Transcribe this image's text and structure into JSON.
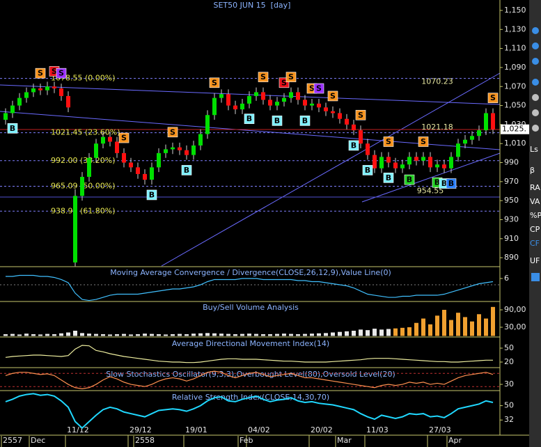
{
  "chart_data": [
    {
      "type": "candlestick",
      "title": "SET50 JUN 15  [day]",
      "open": [
        1035,
        1042,
        1050,
        1058,
        1064,
        1068,
        1066,
        1070,
        1068,
        1060,
        885,
        955,
        975,
        995,
        1010,
        1017,
        1012,
        1000,
        990,
        985,
        978,
        972,
        985,
        1000,
        1004,
        1006,
        1003,
        998,
        1008,
        1020,
        1040,
        1058,
        1062,
        1050,
        1046,
        1052,
        1060,
        1064,
        1056,
        1050,
        1054,
        1058,
        1064,
        1056,
        1050,
        1052,
        1048,
        1044,
        1042,
        1036,
        1030,
        1024,
        1010,
        998,
        984,
        996,
        990,
        984,
        988,
        996,
        992,
        996,
        985,
        988,
        984,
        996,
        1010,
        1014,
        1018,
        1024,
        1042
      ],
      "high": [
        1047,
        1055,
        1063,
        1069,
        1073,
        1073,
        1075,
        1075,
        1073,
        1065,
        962,
        980,
        1000,
        1015,
        1022,
        1022,
        1017,
        1005,
        995,
        990,
        983,
        990,
        1005,
        1009,
        1011,
        1011,
        1008,
        1013,
        1025,
        1045,
        1063,
        1067,
        1067,
        1055,
        1057,
        1065,
        1069,
        1069,
        1061,
        1059,
        1063,
        1069,
        1069,
        1061,
        1057,
        1057,
        1053,
        1049,
        1047,
        1041,
        1035,
        1029,
        1015,
        1003,
        1001,
        1001,
        995,
        993,
        1001,
        1001,
        1001,
        1001,
        993,
        993,
        1001,
        1015,
        1019,
        1023,
        1029,
        1047,
        1047
      ],
      "low": [
        1030,
        1037,
        1045,
        1053,
        1059,
        1061,
        1061,
        1063,
        1055,
        1043,
        881,
        950,
        970,
        990,
        1005,
        1007,
        995,
        985,
        980,
        973,
        967,
        967,
        980,
        995,
        999,
        998,
        993,
        993,
        1003,
        1015,
        1035,
        1053,
        1045,
        1041,
        1041,
        1047,
        1055,
        1051,
        1045,
        1045,
        1049,
        1053,
        1051,
        1045,
        1045,
        1043,
        1039,
        1037,
        1031,
        1025,
        1019,
        1005,
        993,
        979,
        979,
        985,
        979,
        979,
        983,
        987,
        987,
        980,
        980,
        979,
        979,
        991,
        1005,
        1009,
        1013,
        1019,
        1020
      ],
      "close": [
        1042,
        1050,
        1058,
        1064,
        1068,
        1066,
        1070,
        1068,
        1060,
        1048,
        955,
        975,
        995,
        1010,
        1017,
        1012,
        1000,
        990,
        985,
        978,
        972,
        985,
        1000,
        1004,
        1006,
        1003,
        998,
        1008,
        1020,
        1040,
        1058,
        1062,
        1050,
        1046,
        1052,
        1060,
        1064,
        1056,
        1050,
        1054,
        1058,
        1064,
        1056,
        1050,
        1052,
        1048,
        1044,
        1042,
        1036,
        1030,
        1024,
        1010,
        998,
        984,
        996,
        990,
        984,
        988,
        996,
        992,
        996,
        985,
        988,
        984,
        996,
        1010,
        1014,
        1018,
        1024,
        1042,
        1025
      ],
      "up_color": "#00e000",
      "down_color": "#ff1010",
      "ylim": [
        881.3,
        1159.5
      ],
      "yticks": [
        {
          "value": 1150,
          "label": "1,150"
        },
        {
          "value": 1130,
          "label": "1,130"
        },
        {
          "value": 1110,
          "label": "1,110"
        },
        {
          "value": 1090,
          "label": "1,090"
        },
        {
          "value": 1070,
          "label": "1,070"
        },
        {
          "value": 1050,
          "label": "1,050"
        },
        {
          "value": 1030,
          "label": "1,030"
        },
        {
          "value": 1010,
          "label": "1,010"
        },
        990,
        970,
        950,
        930,
        910,
        890
      ],
      "categories": [
        null,
        null,
        null,
        null,
        null,
        null,
        null,
        null,
        null,
        "11/12",
        null,
        null,
        null,
        null,
        null,
        null,
        null,
        null,
        "29/12",
        null,
        null,
        null,
        null,
        null,
        null,
        null,
        "19/01",
        null,
        null,
        null,
        null,
        null,
        null,
        null,
        null,
        "04/02",
        null,
        null,
        null,
        null,
        null,
        null,
        null,
        null,
        "20/02",
        null,
        null,
        null,
        null,
        null,
        null,
        null,
        "11/03",
        null,
        null,
        null,
        null,
        null,
        null,
        null,
        null,
        "27/03",
        null,
        null,
        null,
        null,
        null,
        null,
        null,
        null,
        null
      ],
      "x_months": [
        "2557",
        null,
        null,
        null,
        "Dec",
        null,
        null,
        null,
        null,
        null,
        null,
        null,
        null,
        null,
        null,
        null,
        null,
        null,
        null,
        "2558",
        null,
        null,
        null,
        null,
        null,
        null,
        null,
        null,
        null,
        null,
        null,
        null,
        null,
        null,
        "Feb",
        null,
        null,
        null,
        null,
        null,
        null,
        null,
        null,
        null,
        null,
        null,
        null,
        null,
        "Mar",
        null,
        null,
        null,
        null,
        null,
        null,
        null,
        null,
        null,
        null,
        null,
        null,
        null,
        null,
        null,
        "Apr",
        null,
        null,
        null,
        null,
        null,
        null,
        null
      ],
      "fib": [
        {
          "value": 1078.55,
          "label": "1078.55 (0.00%)"
        },
        {
          "value": 1021.45,
          "label": "1021.45 (23.60%)"
        },
        {
          "value": 992.0,
          "label": "992.00 (38.20%)"
        },
        {
          "value": 965.09,
          "label": "965.09 (50.00%)"
        },
        {
          "value": 938.91,
          "label": "938.91 (61.80%)"
        }
      ],
      "annotations": [
        {
          "text": "1070.23",
          "x": 62,
          "y": 1075
        },
        {
          "text": "1021.18",
          "x": 62,
          "y": 1027
        },
        {
          "text": "954.55",
          "x": 61,
          "y": 960
        }
      ],
      "signals": [
        {
          "text": "S",
          "x": 5,
          "color": "#f7931e"
        },
        {
          "text": "S",
          "x": 7,
          "color": "#e8101a"
        },
        {
          "text": "S",
          "x": 8,
          "color": "#9b30ff"
        },
        {
          "text": "S",
          "x": 17,
          "color": "#f7931e"
        },
        {
          "text": "S",
          "x": 24,
          "color": "#f7931e"
        },
        {
          "text": "S",
          "x": 30,
          "color": "#f7931e"
        },
        {
          "text": "S",
          "x": 37,
          "color": "#f7931e"
        },
        {
          "text": "S",
          "x": 40,
          "color": "#e8101a"
        },
        {
          "text": "S",
          "x": 41,
          "color": "#f7931e"
        },
        {
          "text": "S",
          "x": 44,
          "color": "#f7931e"
        },
        {
          "text": "S",
          "x": 45,
          "color": "#9b30ff"
        },
        {
          "text": "S",
          "x": 47,
          "color": "#f7931e"
        },
        {
          "text": "S",
          "x": 51,
          "color": "#f7931e"
        },
        {
          "text": "S",
          "x": 55,
          "color": "#f7931e"
        },
        {
          "text": "S",
          "x": 60,
          "color": "#f7931e"
        },
        {
          "text": "S",
          "x": 70,
          "color": "#f7931e"
        },
        {
          "text": "B",
          "x": 1,
          "color": "#7ff0ff"
        },
        {
          "text": "B",
          "x": 21,
          "color": "#7ff0ff"
        },
        {
          "text": "B",
          "x": 26,
          "color": "#7ff0ff"
        },
        {
          "text": "B",
          "x": 35,
          "color": "#7ff0ff"
        },
        {
          "text": "B",
          "x": 39,
          "color": "#7ff0ff"
        },
        {
          "text": "B",
          "x": 43,
          "color": "#7ff0ff"
        },
        {
          "text": "B",
          "x": 50,
          "color": "#7ff0ff"
        },
        {
          "text": "B",
          "x": 52,
          "color": "#7ff0ff"
        },
        {
          "text": "B",
          "x": 55,
          "color": "#7ff0ff"
        },
        {
          "text": "B",
          "x": 58,
          "color": "#22d022"
        },
        {
          "text": "B",
          "x": 62,
          "color": "#22d022"
        },
        {
          "text": "B",
          "x": 63,
          "color": "#7ff0ff"
        },
        {
          "text": "B",
          "x": 64,
          "color": "#2a7fff"
        }
      ],
      "last_label": "1,025."
    },
    {
      "type": "line",
      "title": "Moving Average Convergence / Divergence(CLOSE,26,12,9),Value Line(0)",
      "color": "#40c0ff",
      "values": [
        8,
        8,
        9,
        9,
        9,
        8,
        8,
        7,
        5,
        2,
        -8,
        -14,
        -15,
        -14,
        -12,
        -10,
        -9,
        -9,
        -9,
        -9,
        -8,
        -7,
        -6,
        -5,
        -4,
        -4,
        -3,
        -2,
        0,
        3,
        5,
        5,
        5,
        5,
        6,
        6,
        6,
        5,
        5,
        5,
        5,
        5,
        4,
        4,
        3,
        3,
        2,
        1,
        0,
        -1,
        -3,
        -6,
        -9,
        -10,
        -11,
        -12,
        -12,
        -11,
        -11,
        -10,
        -10,
        -10,
        -10,
        -9,
        -7,
        -5,
        -3,
        -1,
        1,
        2,
        3
      ],
      "value_line": 0,
      "ylim": [
        -15.3,
        17.3
      ],
      "yticks": [
        6
      ]
    },
    {
      "type": "bar",
      "title": "Buy/Sell Volume Analysis",
      "color": "#f0a030",
      "values": [
        6000,
        7000,
        5000,
        8000,
        6000,
        5000,
        7000,
        6000,
        9000,
        12000,
        18000,
        10000,
        8000,
        7000,
        6000,
        5000,
        6000,
        7000,
        5000,
        6000,
        8000,
        7000,
        6000,
        5000,
        6000,
        7000,
        6000,
        8000,
        9000,
        10000,
        9000,
        8000,
        7000,
        6000,
        7000,
        8000,
        7000,
        6000,
        6000,
        7000,
        8000,
        7000,
        6000,
        7000,
        8000,
        9000,
        10000,
        12000,
        14000,
        16000,
        18000,
        22000,
        20000,
        25000,
        22000,
        24000,
        26000,
        28000,
        30000,
        45000,
        60000,
        40000,
        70000,
        90000,
        55000,
        80000,
        65000,
        50000,
        75000,
        60000,
        100000
      ],
      "ylim": [
        -3600,
        118800
      ],
      "yticks": [
        {
          "value": 90000,
          "label": "90,00"
        },
        {
          "value": 30000,
          "label": "30,00"
        }
      ]
    },
    {
      "type": "line",
      "title": "Average Directional Movement Index(14)",
      "color": "#f0f0a0",
      "values": [
        30,
        32,
        33,
        34,
        35,
        35,
        34,
        33,
        32,
        34,
        48,
        56,
        55,
        45,
        42,
        38,
        35,
        32,
        30,
        28,
        26,
        24,
        22,
        21,
        20,
        20,
        19,
        19,
        20,
        22,
        24,
        26,
        27,
        27,
        26,
        26,
        26,
        25,
        24,
        23,
        22,
        22,
        21,
        20,
        20,
        20,
        20,
        21,
        22,
        23,
        24,
        25,
        27,
        28,
        28,
        28,
        27,
        26,
        25,
        24,
        23,
        22,
        21,
        21,
        20,
        20,
        21,
        22,
        23,
        24,
        24
      ],
      "ylim": [
        8,
        72.5
      ],
      "yticks": [
        50,
        20
      ]
    },
    {
      "type": "line",
      "title": "Slow Stochastics Oscillator(9,3,3),Overbought Level(80),Oversold Level(20)",
      "color": "#ff9050",
      "values": [
        70,
        80,
        85,
        85,
        80,
        75,
        78,
        70,
        50,
        30,
        15,
        10,
        15,
        30,
        50,
        65,
        55,
        40,
        30,
        25,
        20,
        30,
        45,
        55,
        60,
        55,
        45,
        55,
        70,
        85,
        90,
        85,
        70,
        60,
        70,
        80,
        85,
        75,
        65,
        70,
        75,
        80,
        70,
        60,
        60,
        55,
        50,
        45,
        40,
        35,
        30,
        25,
        20,
        15,
        25,
        30,
        25,
        30,
        40,
        35,
        40,
        30,
        35,
        30,
        45,
        60,
        70,
        75,
        80,
        85,
        75
      ],
      "levels": [
        80,
        20
      ],
      "ylim": [
        1.6,
        103
      ],
      "yticks": [
        30
      ]
    },
    {
      "type": "line",
      "title": "Relative Strength Index(CLOSE,14,30,70)",
      "color": "#20d8ff",
      "values": [
        55,
        58,
        62,
        64,
        65,
        63,
        64,
        62,
        56,
        48,
        30,
        22,
        30,
        38,
        45,
        48,
        46,
        42,
        40,
        38,
        36,
        40,
        44,
        45,
        46,
        45,
        43,
        46,
        50,
        56,
        60,
        61,
        56,
        55,
        58,
        60,
        62,
        58,
        55,
        57,
        58,
        60,
        56,
        54,
        55,
        53,
        52,
        51,
        49,
        47,
        45,
        40,
        36,
        33,
        38,
        36,
        34,
        36,
        40,
        39,
        40,
        36,
        37,
        35,
        40,
        46,
        48,
        50,
        52,
        56,
        54
      ],
      "ylim": [
        13,
        68
      ],
      "yticks": [
        50,
        32
      ]
    }
  ],
  "toolbar": [
    "Ls",
    "β",
    "RA",
    "VA",
    "%P",
    "CP",
    "CF",
    "UF"
  ]
}
